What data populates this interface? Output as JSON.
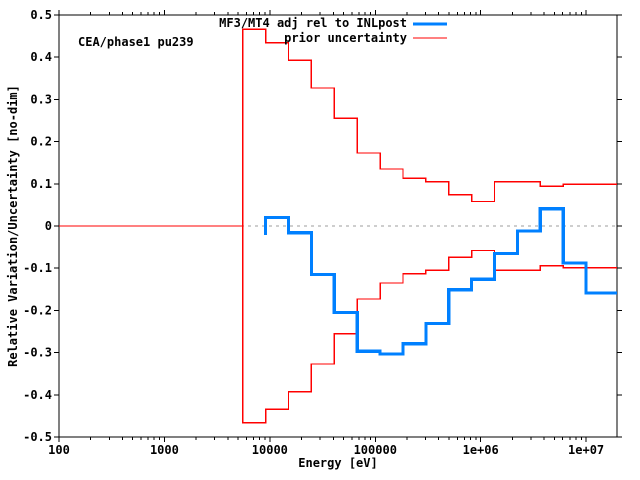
{
  "chart_data": {
    "type": "line",
    "style": "log-x step (histogram) curves",
    "title": "CEA/phase1 pu239",
    "xlabel": "Energy [eV]",
    "ylabel": "Relative Variation/Uncertainty [no-dim]",
    "x_scale": "log",
    "xlim": [
      100,
      19640000
    ],
    "ylim": [
      -0.5,
      0.5
    ],
    "grid": "dotted zero line only",
    "zero_line_color": "#9e9e9e",
    "axis_color": "#000000",
    "background_color": "#ffffff",
    "legend_position": "top center-right, inside",
    "x_ticks": [
      {
        "v": 100,
        "label": "100"
      },
      {
        "v": 1000,
        "label": "1000"
      },
      {
        "v": 10000,
        "label": "10000"
      },
      {
        "v": 100000,
        "label": "100000"
      },
      {
        "v": 1000000,
        "label": "1e+06"
      },
      {
        "v": 10000000,
        "label": "1e+07"
      }
    ],
    "y_ticks": [
      {
        "v": 0.5,
        "label": "0.5"
      },
      {
        "v": 0.4,
        "label": "0.4"
      },
      {
        "v": 0.3,
        "label": "0.3"
      },
      {
        "v": 0.2,
        "label": "0.2"
      },
      {
        "v": 0.1,
        "label": "0.1"
      },
      {
        "v": 0.0,
        "label": "0"
      },
      {
        "v": -0.1,
        "label": "-0.1"
      },
      {
        "v": -0.2,
        "label": "-0.2"
      },
      {
        "v": -0.3,
        "label": "-0.3"
      },
      {
        "v": -0.4,
        "label": "-0.4"
      },
      {
        "v": -0.5,
        "label": "-0.5"
      }
    ],
    "legend": [
      {
        "label": "MF3/MT4 adj rel to INLpost",
        "color": "#0080ff",
        "line_width": 3.2
      },
      {
        "label": "prior uncertainty",
        "color": "#ff0000",
        "line_width": 1.4
      }
    ],
    "series": [
      {
        "name": "prior-uncertainty-upper",
        "legend": "prior uncertainty",
        "color": "#ff0000",
        "line_width": 1.4,
        "boundaries": [
          100,
          5531,
          9119,
          15034,
          24788,
          40868,
          67379,
          111090,
          183160,
          301970,
          497870,
          820850,
          1353000,
          2231000,
          3679000,
          6065000,
          10000000,
          19640000
        ],
        "values": [
          0.0,
          0.466,
          0.434,
          0.393,
          0.327,
          0.255,
          0.173,
          0.135,
          0.113,
          0.105,
          0.074,
          0.058,
          0.105,
          0.105,
          0.094,
          0.099,
          0.099
        ]
      },
      {
        "name": "prior-uncertainty-lower",
        "legend": "prior uncertainty",
        "color": "#ff0000",
        "line_width": 1.4,
        "boundaries": [
          100,
          5531,
          9119,
          15034,
          24788,
          40868,
          67379,
          111090,
          183160,
          301970,
          497870,
          820850,
          1353000,
          2231000,
          3679000,
          6065000,
          10000000,
          19640000
        ],
        "values": [
          0.0,
          -0.466,
          -0.434,
          -0.393,
          -0.327,
          -0.255,
          -0.173,
          -0.135,
          -0.113,
          -0.105,
          -0.074,
          -0.058,
          -0.105,
          -0.105,
          -0.094,
          -0.099,
          -0.099
        ]
      },
      {
        "name": "mf3-mt4-adjustment",
        "legend": "MF3/MT4 adj rel to INLpost",
        "color": "#0080ff",
        "line_width": 3.2,
        "start_y": -0.021,
        "boundaries": [
          9119,
          15034,
          24788,
          40868,
          67379,
          111090,
          183160,
          301970,
          497870,
          820850,
          1353000,
          2231000,
          3679000,
          6065000,
          10000000,
          19640000
        ],
        "values": [
          0.02,
          -0.016,
          -0.115,
          -0.205,
          -0.297,
          -0.303,
          -0.279,
          -0.231,
          -0.151,
          -0.126,
          -0.065,
          -0.012,
          0.041,
          -0.088,
          -0.159
        ]
      }
    ]
  }
}
